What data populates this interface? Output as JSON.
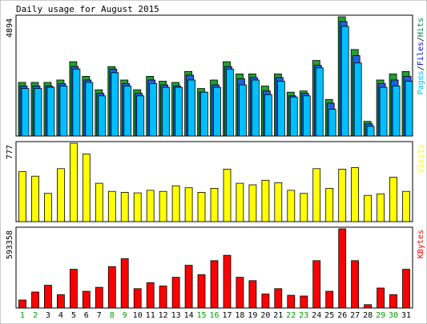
{
  "chart_data": {
    "type": "bar",
    "title": "Daily usage for August 2015",
    "categories": [
      "1",
      "2",
      "3",
      "4",
      "5",
      "6",
      "7",
      "8",
      "9",
      "10",
      "11",
      "12",
      "13",
      "14",
      "15",
      "16",
      "17",
      "18",
      "19",
      "20",
      "21",
      "22",
      "23",
      "24",
      "25",
      "26",
      "27",
      "28",
      "29",
      "30",
      "31"
    ],
    "weekend_days": [
      "1",
      "2",
      "8",
      "9",
      "15",
      "16",
      "22",
      "23",
      "29",
      "30"
    ],
    "panels": [
      {
        "id": "requests",
        "ymax": 4894,
        "ymax_label": "4894",
        "legend": [
          {
            "text": "Hits",
            "color": "#00805c"
          },
          {
            "text": "Files",
            "color": "#0000ff"
          },
          {
            "text": "Pages",
            "color": "#00c0ff"
          }
        ],
        "series": [
          {
            "name": "Hits",
            "color": "#20a030",
            "values": [
              2200,
              2200,
              2200,
              2300,
              3050,
              2450,
              1900,
              2850,
              2300,
              1900,
              2450,
              2250,
              2200,
              2650,
              1950,
              2300,
              3050,
              2550,
              2550,
              2050,
              2550,
              1800,
              1850,
              3100,
              1500,
              4894,
              3550,
              600,
              2300,
              2550,
              2650
            ]
          },
          {
            "name": "Files",
            "color": "#2060e0",
            "values": [
              2050,
              2050,
              2050,
              2150,
              2850,
              2300,
              1750,
              2750,
              2150,
              1750,
              2300,
              2100,
              2050,
              2500,
              1800,
              2100,
              2850,
              2350,
              2400,
              1850,
              2400,
              1650,
              1750,
              2900,
              1350,
              4700,
              3300,
              500,
              2150,
              2300,
              2450
            ]
          },
          {
            "name": "Pages",
            "color": "#00bfff",
            "values": [
              1950,
              1950,
              2000,
              2050,
              2750,
              2200,
              1650,
              2600,
              2050,
              1650,
              2150,
              2000,
              2000,
              2300,
              1800,
              2000,
              2750,
              2100,
              2300,
              1700,
              2250,
              1600,
              1650,
              2800,
              1100,
              4500,
              3000,
              400,
              2000,
              2050,
              2250
            ]
          }
        ]
      },
      {
        "id": "visits",
        "ymax": 777,
        "ymax_label": "777",
        "legend": [
          {
            "text": "Visits",
            "color": "#ffff00"
          }
        ],
        "series": [
          {
            "name": "Visits",
            "color": "#ffff00",
            "values": [
              495,
              450,
              280,
              525,
              777,
              670,
              380,
              300,
              290,
              285,
              310,
              300,
              355,
              335,
              290,
              330,
              520,
              380,
              365,
              410,
              385,
              310,
              280,
              525,
              330,
              520,
              535,
              260,
              275,
              440,
              300
            ]
          }
        ]
      },
      {
        "id": "kbytes",
        "ymax": 593358,
        "ymax_label": "593358",
        "legend": [
          {
            "text": "KBytes",
            "color": "#ff0000"
          }
        ],
        "series": [
          {
            "name": "KBytes",
            "color": "#ff0000",
            "values": [
              60000,
              120000,
              170000,
              100000,
              290000,
              125000,
              155000,
              310000,
              370000,
              145000,
              190000,
              165000,
              230000,
              320000,
              250000,
              355000,
              395000,
              230000,
              205000,
              105000,
              145000,
              95000,
              90000,
              355000,
              125000,
              593358,
              355000,
              25000,
              150000,
              100000,
              290000
            ]
          }
        ]
      }
    ]
  }
}
